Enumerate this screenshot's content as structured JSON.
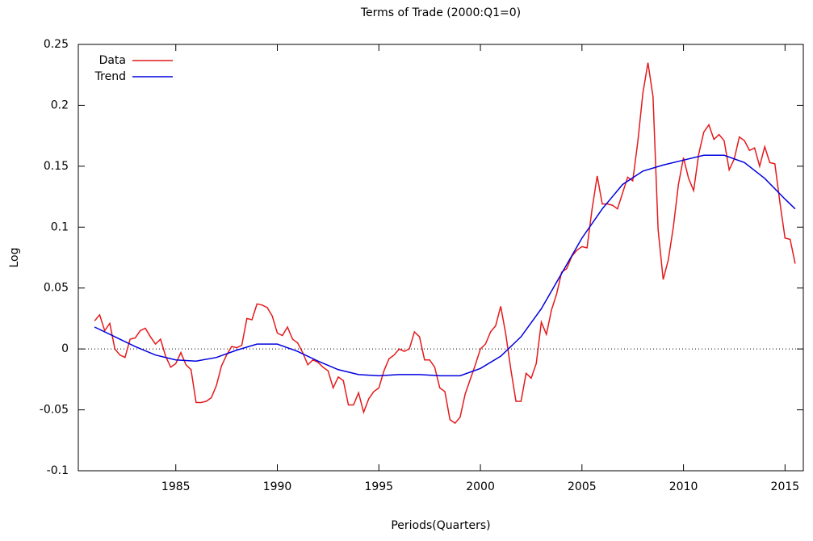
{
  "chart_data": {
    "type": "line",
    "title": "Terms of Trade (2000:Q1=0)",
    "x_label": "Periods(Quarters)",
    "y_label": "Log",
    "xlim": [
      1980.2,
      2015.9
    ],
    "xticks": [
      1985,
      1990,
      1995,
      2000,
      2005,
      2010,
      2015
    ],
    "ylim": [
      -0.1,
      0.25
    ],
    "yticks": [
      -0.1,
      -0.05,
      0,
      0.05,
      0.1,
      0.15,
      0.2,
      0.25
    ],
    "zero_line": true,
    "legend": "top-left",
    "series": [
      {
        "name": "Data",
        "color": "#e41a1c",
        "x": [
          1981,
          1981.25,
          1981.5,
          1981.75,
          1982,
          1982.25,
          1982.5,
          1982.75,
          1983,
          1983.25,
          1983.5,
          1983.75,
          1984,
          1984.25,
          1984.5,
          1984.75,
          1985,
          1985.25,
          1985.5,
          1985.75,
          1986,
          1986.25,
          1986.5,
          1986.75,
          1987,
          1987.25,
          1987.5,
          1987.75,
          1988,
          1988.25,
          1988.5,
          1988.75,
          1989,
          1989.25,
          1989.5,
          1989.75,
          1990,
          1990.25,
          1990.5,
          1990.75,
          1991,
          1991.25,
          1991.5,
          1991.75,
          1992,
          1992.25,
          1992.5,
          1992.75,
          1993,
          1993.25,
          1993.5,
          1993.75,
          1994,
          1994.25,
          1994.5,
          1994.75,
          1995,
          1995.25,
          1995.5,
          1995.75,
          1996,
          1996.25,
          1996.5,
          1996.75,
          1997,
          1997.25,
          1997.5,
          1997.75,
          1998,
          1998.25,
          1998.5,
          1998.75,
          1999,
          1999.25,
          1999.5,
          1999.75,
          2000,
          2000.25,
          2000.5,
          2000.75,
          2001,
          2001.25,
          2001.5,
          2001.75,
          2002,
          2002.25,
          2002.5,
          2002.75,
          2003,
          2003.25,
          2003.5,
          2003.75,
          2004,
          2004.25,
          2004.5,
          2004.75,
          2005,
          2005.25,
          2005.5,
          2005.75,
          2006,
          2006.25,
          2006.5,
          2006.75,
          2007,
          2007.25,
          2007.5,
          2007.75,
          2008,
          2008.25,
          2008.5,
          2008.75,
          2009,
          2009.25,
          2009.5,
          2009.75,
          2010,
          2010.25,
          2010.5,
          2010.75,
          2011,
          2011.25,
          2011.5,
          2011.75,
          2012,
          2012.25,
          2012.5,
          2012.75,
          2013,
          2013.25,
          2013.5,
          2013.75,
          2014,
          2014.25,
          2014.5,
          2014.75,
          2015,
          2015.25,
          2015.5
        ],
        "values": [
          0.023,
          0.028,
          0.015,
          0.021,
          0.0,
          -0.005,
          -0.007,
          0.008,
          0.009,
          0.015,
          0.017,
          0.01,
          0.004,
          0.008,
          -0.006,
          -0.015,
          -0.012,
          -0.003,
          -0.013,
          -0.017,
          -0.044,
          -0.044,
          -0.043,
          -0.04,
          -0.03,
          -0.014,
          -0.005,
          0.002,
          0.001,
          0.003,
          0.025,
          0.024,
          0.037,
          0.036,
          0.034,
          0.027,
          0.013,
          0.011,
          0.018,
          0.008,
          0.005,
          -0.003,
          -0.013,
          -0.009,
          -0.011,
          -0.015,
          -0.018,
          -0.032,
          -0.023,
          -0.026,
          -0.046,
          -0.046,
          -0.036,
          -0.052,
          -0.041,
          -0.035,
          -0.032,
          -0.018,
          -0.008,
          -0.005,
          0.0,
          -0.002,
          0.0,
          0.014,
          0.01,
          -0.009,
          -0.009,
          -0.015,
          -0.032,
          -0.035,
          -0.058,
          -0.061,
          -0.056,
          -0.037,
          -0.025,
          -0.013,
          0.0,
          0.004,
          0.014,
          0.019,
          0.035,
          0.012,
          -0.017,
          -0.043,
          -0.043,
          -0.02,
          -0.024,
          -0.012,
          0.022,
          0.012,
          0.032,
          0.045,
          0.063,
          0.066,
          0.076,
          0.081,
          0.084,
          0.083,
          0.115,
          0.142,
          0.119,
          0.119,
          0.118,
          0.115,
          0.128,
          0.141,
          0.138,
          0.17,
          0.21,
          0.235,
          0.207,
          0.098,
          0.057,
          0.073,
          0.1,
          0.135,
          0.157,
          0.14,
          0.13,
          0.16,
          0.178,
          0.184,
          0.172,
          0.176,
          0.171,
          0.147,
          0.156,
          0.174,
          0.171,
          0.163,
          0.165,
          0.15,
          0.166,
          0.153,
          0.152,
          0.12,
          0.091,
          0.09,
          0.07
        ]
      },
      {
        "name": "Trend",
        "color": "#0000e0",
        "x": [
          1981,
          1982,
          1983,
          1984,
          1985,
          1986,
          1987,
          1988,
          1989,
          1990,
          1991,
          1992,
          1993,
          1994,
          1995,
          1996,
          1997,
          1998,
          1999,
          2000,
          2001,
          2002,
          2003,
          2004,
          2005,
          2006,
          2007,
          2008,
          2009,
          2010,
          2011,
          2012,
          2013,
          2014,
          2015,
          2015.5
        ],
        "values": [
          0.018,
          0.01,
          0.002,
          -0.005,
          -0.009,
          -0.01,
          -0.007,
          -0.001,
          0.004,
          0.004,
          -0.002,
          -0.01,
          -0.017,
          -0.021,
          -0.022,
          -0.021,
          -0.021,
          -0.022,
          -0.022,
          -0.016,
          -0.006,
          0.01,
          0.033,
          0.062,
          0.091,
          0.115,
          0.135,
          0.146,
          0.151,
          0.155,
          0.159,
          0.159,
          0.153,
          0.14,
          0.123,
          0.115
        ]
      }
    ]
  }
}
